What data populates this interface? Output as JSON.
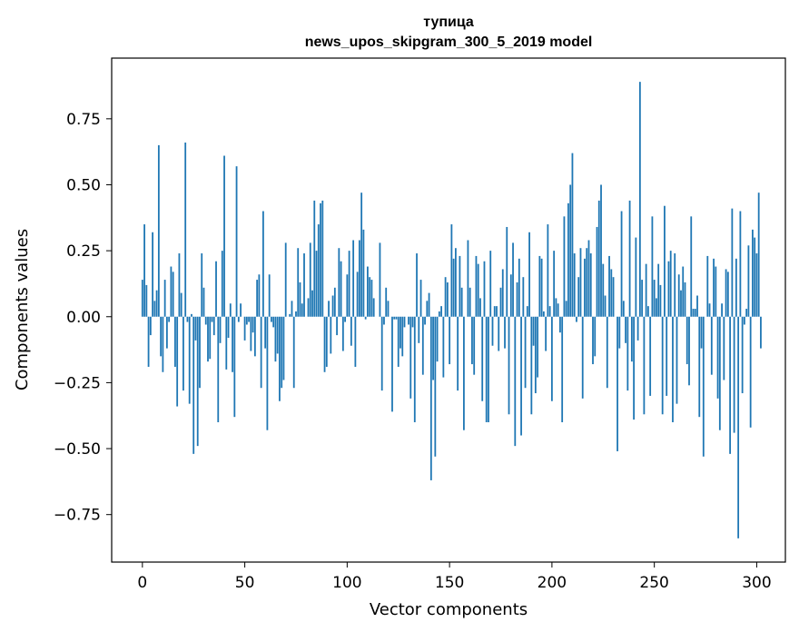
{
  "chart_data": {
    "type": "bar",
    "title": "тупица",
    "subtitle": "news_upos_skipgram_300_5_2019 model",
    "xlabel": "Vector components",
    "ylabel": "Components values",
    "xlim": [
      -15,
      314
    ],
    "ylim": [
      -0.93,
      0.98
    ],
    "xticks": [
      0,
      50,
      100,
      150,
      200,
      250,
      300
    ],
    "xtick_labels": [
      "0",
      "50",
      "100",
      "150",
      "200",
      "250",
      "300"
    ],
    "yticks": [
      -0.75,
      -0.5,
      -0.25,
      0.0,
      0.25,
      0.5,
      0.75
    ],
    "ytick_labels": [
      "−0.75",
      "−0.50",
      "−0.25",
      "0.00",
      "0.25",
      "0.50",
      "0.75"
    ],
    "grid": false,
    "bar_color": "#1f77b4",
    "values": [
      0.14,
      0.35,
      0.12,
      -0.19,
      -0.07,
      0.32,
      0.06,
      0.1,
      0.65,
      -0.15,
      -0.21,
      0.14,
      -0.12,
      -0.02,
      0.19,
      0.17,
      -0.19,
      -0.34,
      0.24,
      0.09,
      -0.28,
      0.66,
      -0.02,
      -0.33,
      0.01,
      -0.52,
      -0.09,
      -0.49,
      -0.27,
      0.24,
      0.11,
      -0.03,
      -0.17,
      -0.16,
      -0.02,
      -0.07,
      0.21,
      -0.4,
      -0.1,
      0.25,
      0.61,
      -0.2,
      -0.08,
      0.05,
      -0.21,
      -0.38,
      0.57,
      -0.02,
      0.05,
      0.0,
      -0.09,
      -0.03,
      -0.02,
      -0.13,
      -0.06,
      -0.15,
      0.14,
      0.16,
      -0.27,
      0.4,
      -0.12,
      -0.43,
      0.16,
      -0.02,
      -0.04,
      -0.17,
      -0.14,
      -0.32,
      -0.27,
      -0.24,
      0.28,
      0.0,
      0.01,
      0.06,
      -0.27,
      0.02,
      0.26,
      0.13,
      0.05,
      0.24,
      0.0,
      0.07,
      0.28,
      0.1,
      0.44,
      0.25,
      0.35,
      0.43,
      0.44,
      -0.21,
      -0.19,
      0.06,
      -0.14,
      0.08,
      0.11,
      -0.07,
      0.26,
      0.21,
      -0.13,
      -0.02,
      0.16,
      0.25,
      -0.11,
      0.29,
      -0.19,
      0.17,
      0.29,
      0.47,
      0.33,
      -0.01,
      0.19,
      0.15,
      0.14,
      0.07,
      0.0,
      0.0,
      0.28,
      -0.28,
      -0.03,
      0.11,
      0.06,
      0.0,
      -0.36,
      -0.01,
      -0.01,
      -0.19,
      -0.12,
      -0.15,
      -0.04,
      0.0,
      -0.03,
      -0.31,
      -0.04,
      -0.4,
      0.24,
      -0.1,
      0.14,
      -0.22,
      -0.03,
      0.06,
      0.09,
      -0.62,
      -0.24,
      -0.53,
      -0.17,
      0.02,
      0.04,
      -0.23,
      0.15,
      0.13,
      -0.18,
      0.35,
      0.22,
      0.26,
      -0.28,
      0.23,
      0.11,
      -0.43,
      0.0,
      0.29,
      0.11,
      -0.18,
      -0.22,
      0.23,
      0.2,
      0.07,
      -0.32,
      0.21,
      -0.4,
      -0.4,
      0.25,
      -0.11,
      0.04,
      0.04,
      -0.13,
      0.11,
      0.18,
      -0.12,
      0.34,
      -0.37,
      0.16,
      0.28,
      -0.49,
      0.13,
      0.22,
      -0.45,
      0.15,
      -0.27,
      0.04,
      0.32,
      -0.37,
      -0.11,
      -0.29,
      -0.23,
      0.23,
      0.22,
      0.02,
      -0.13,
      0.35,
      0.04,
      -0.32,
      0.25,
      0.07,
      0.05,
      -0.06,
      -0.4,
      0.38,
      0.06,
      0.43,
      0.5,
      0.62,
      0.24,
      -0.02,
      0.15,
      0.26,
      -0.31,
      0.22,
      0.26,
      0.29,
      0.24,
      -0.18,
      -0.15,
      0.34,
      0.44,
      0.5,
      0.2,
      0.08,
      -0.27,
      0.23,
      0.18,
      0.15,
      0.0,
      -0.51,
      -0.12,
      0.4,
      0.06,
      -0.1,
      -0.28,
      0.44,
      -0.17,
      -0.39,
      0.3,
      -0.09,
      0.89,
      0.14,
      -0.37,
      0.2,
      0.04,
      -0.3,
      0.38,
      0.14,
      0.07,
      0.2,
      0.12,
      -0.37,
      0.42,
      -0.3,
      0.21,
      0.25,
      -0.4,
      0.24,
      -0.33,
      0.16,
      0.1,
      0.19,
      0.13,
      -0.18,
      -0.26,
      0.38,
      0.03,
      0.03,
      0.08,
      -0.38,
      -0.12,
      -0.53,
      0.0,
      0.23,
      0.05,
      -0.22,
      0.22,
      0.19,
      -0.31,
      -0.43,
      0.05,
      -0.24,
      0.18,
      0.17,
      -0.52,
      0.41,
      -0.44,
      0.22,
      -0.84,
      0.4,
      -0.29,
      -0.03,
      0.03,
      0.27,
      -0.42,
      0.33,
      0.3,
      0.24,
      0.47,
      -0.12
    ]
  }
}
